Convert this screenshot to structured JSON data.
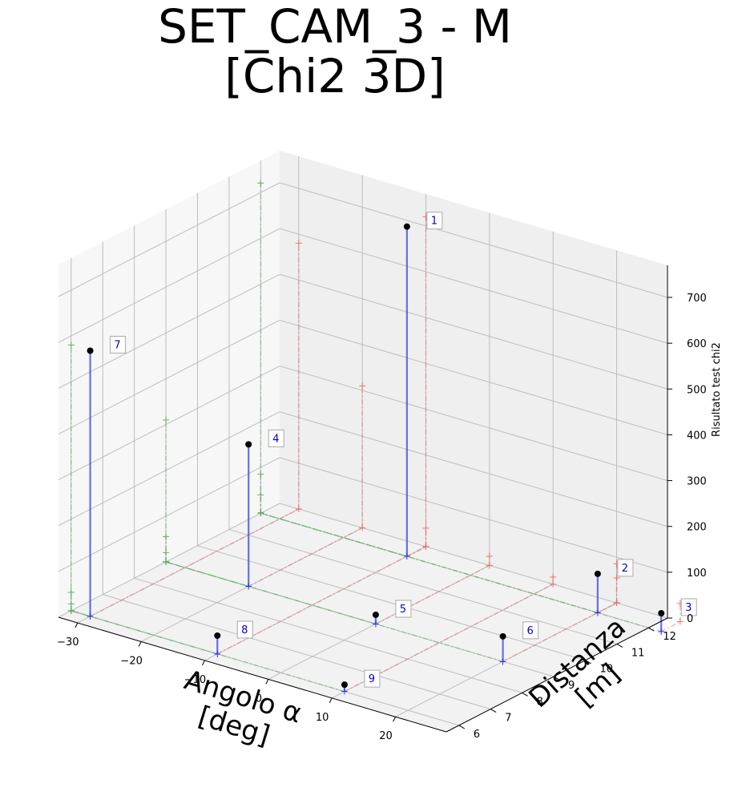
{
  "title_line1": "SET_CAM_3 - M",
  "title_line2": "[Chi2 3D]",
  "chart_data": {
    "type": "scatter3d",
    "x_label": "Angolo α\n[deg]",
    "y_label": "Distanza\n[m]",
    "z_label": "Risultato test chi2",
    "x_ticks": [
      -30,
      -20,
      -10,
      0,
      10,
      20
    ],
    "y_ticks": [
      6,
      7,
      8,
      9,
      10,
      11,
      12
    ],
    "z_ticks": [
      0,
      100,
      200,
      300,
      400,
      500,
      600,
      700
    ],
    "xlim": [
      -33,
      28
    ],
    "ylim": [
      5.6,
      12.6
    ],
    "zlim": [
      0,
      770
    ],
    "grid": true,
    "points": [
      {
        "label": "1",
        "x": -10,
        "y": 12,
        "z": 720
      },
      {
        "label": "2",
        "x": 20,
        "y": 12,
        "z": 85
      },
      {
        "label": "3",
        "x": 30,
        "y": 12,
        "z": 40
      },
      {
        "label": "4",
        "x": -20,
        "y": 9,
        "z": 310
      },
      {
        "label": "5",
        "x": 0,
        "y": 9,
        "z": 20
      },
      {
        "label": "6",
        "x": 20,
        "y": 9,
        "z": 55
      },
      {
        "label": "7",
        "x": -30,
        "y": 6,
        "z": 580
      },
      {
        "label": "8",
        "x": -10,
        "y": 6,
        "z": 40
      },
      {
        "label": "9",
        "x": 10,
        "y": 6,
        "z": 15
      }
    ],
    "colors": {
      "point": "#000000",
      "stem": "#3344ee",
      "stem_marker": "#2233ff",
      "x_projection": "#ee6666",
      "y_projection": "#55aa55"
    }
  }
}
